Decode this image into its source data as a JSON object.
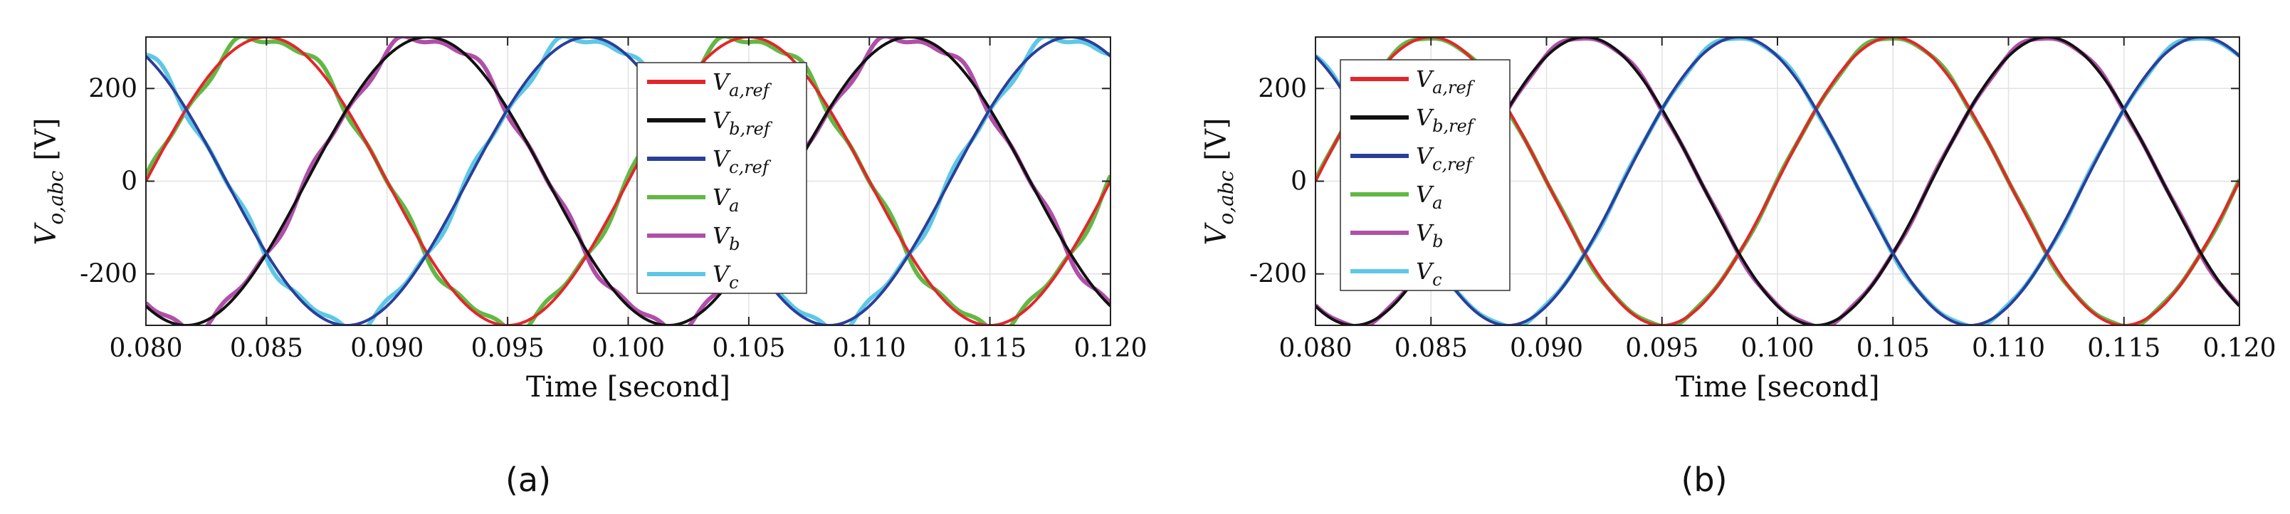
{
  "chart_data": [
    {
      "type": "line",
      "panel_label": "(a)",
      "xlabel": "Time [second]",
      "ylabel": "V_{o,abc} [V]",
      "ylabel_main": "V",
      "ylabel_sub": "o,abc",
      "ylabel_unit": "[V]",
      "xlim": [
        0.08,
        0.12
      ],
      "ylim": [
        -311,
        311
      ],
      "x_ticks": [
        "0.080",
        "0.085",
        "0.090",
        "0.095",
        "0.100",
        "0.105",
        "0.110",
        "0.115",
        "0.120"
      ],
      "y_ticks": [
        "200",
        "0",
        "-200"
      ],
      "grid": true,
      "legend_position": "center",
      "amplitude": 311,
      "frequency_hz": 50,
      "ripple": 14,
      "series": [
        {
          "name": "V_{a,ref}",
          "label_main": "V",
          "label_sub": "a,ref",
          "phase_deg": 0,
          "color": "#e3262b",
          "kind": "reference"
        },
        {
          "name": "V_{b,ref}",
          "label_main": "V",
          "label_sub": "b,ref",
          "phase_deg": -120,
          "color": "#111111",
          "kind": "reference"
        },
        {
          "name": "V_{c,ref}",
          "label_main": "V",
          "label_sub": "c,ref",
          "phase_deg": 120,
          "color": "#2a3f9a",
          "kind": "reference"
        },
        {
          "name": "V_a",
          "label_main": "V",
          "label_sub": "a",
          "phase_deg": 0,
          "color": "#62b845",
          "kind": "measured"
        },
        {
          "name": "V_b",
          "label_main": "V",
          "label_sub": "b",
          "phase_deg": -120,
          "color": "#b04fa8",
          "kind": "measured"
        },
        {
          "name": "V_c",
          "label_main": "V",
          "label_sub": "c",
          "phase_deg": 120,
          "color": "#5ec7e6",
          "kind": "measured"
        }
      ]
    },
    {
      "type": "line",
      "panel_label": "(b)",
      "xlabel": "Time [second]",
      "ylabel": "V_{o,abc} [V]",
      "ylabel_main": "V",
      "ylabel_sub": "o,abc",
      "ylabel_unit": "[V]",
      "xlim": [
        0.08,
        0.12
      ],
      "ylim": [
        -311,
        311
      ],
      "x_ticks": [
        "0.080",
        "0.085",
        "0.090",
        "0.095",
        "0.100",
        "0.105",
        "0.110",
        "0.115",
        "0.120"
      ],
      "y_ticks": [
        "200",
        "0",
        "-200"
      ],
      "grid": true,
      "legend_position": "top-left",
      "amplitude": 311,
      "frequency_hz": 50,
      "ripple": 4,
      "series": [
        {
          "name": "V_{a,ref}",
          "label_main": "V",
          "label_sub": "a,ref",
          "phase_deg": 0,
          "color": "#e3262b",
          "kind": "reference"
        },
        {
          "name": "V_{b,ref}",
          "label_main": "V",
          "label_sub": "b,ref",
          "phase_deg": -120,
          "color": "#111111",
          "kind": "reference"
        },
        {
          "name": "V_{c,ref}",
          "label_main": "V",
          "label_sub": "c,ref",
          "phase_deg": 120,
          "color": "#2a3f9a",
          "kind": "reference"
        },
        {
          "name": "V_a",
          "label_main": "V",
          "label_sub": "a",
          "phase_deg": 0,
          "color": "#62b845",
          "kind": "measured"
        },
        {
          "name": "V_b",
          "label_main": "V",
          "label_sub": "b",
          "phase_deg": -120,
          "color": "#b04fa8",
          "kind": "measured"
        },
        {
          "name": "V_c",
          "label_main": "V",
          "label_sub": "c",
          "phase_deg": 120,
          "color": "#5ec7e6",
          "kind": "measured"
        }
      ]
    }
  ]
}
